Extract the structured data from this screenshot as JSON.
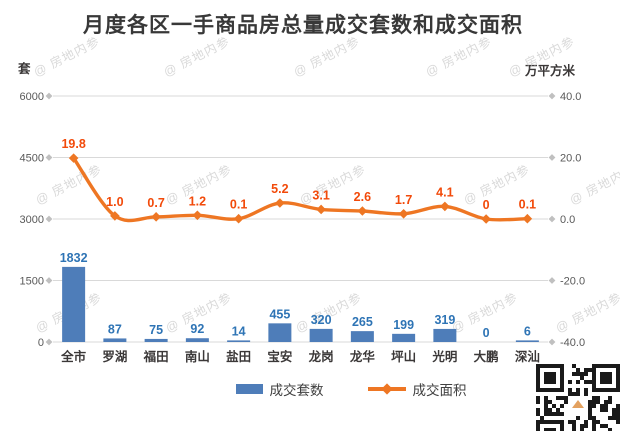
{
  "title": "月度各区一手商品房总量成交套数和成交面积",
  "axes": {
    "left_unit": "套",
    "right_unit": "万平方米"
  },
  "watermark": "@ 房地内参",
  "legend": [
    {
      "label": "成交套数",
      "type": "bar"
    },
    {
      "label": "成交面积",
      "type": "line"
    }
  ],
  "colors": {
    "bar": "#4E7DB9",
    "bar_label": "#2E74B5",
    "line": "#EE7623",
    "line_label": "#F24A0A",
    "grid": "#D9D9D9",
    "tick_marker": "#C0C0C0",
    "axis_text": "#595959",
    "title_text": "#383838",
    "category_text": "#3B3838",
    "legend_text": "#404040"
  },
  "chart_data": {
    "type": "bar+line",
    "title": "月度各区一手商品房总量成交套数和成交面积",
    "categories": [
      "全市",
      "罗湖",
      "福田",
      "南山",
      "盐田",
      "宝安",
      "龙岗",
      "龙华",
      "坪山",
      "光明",
      "大鹏",
      "深汕"
    ],
    "series": [
      {
        "name": "成交套数",
        "chart": "bar",
        "axis": "left",
        "values": [
          1832,
          87,
          75,
          92,
          14,
          455,
          320,
          265,
          199,
          319,
          0,
          6
        ]
      },
      {
        "name": "成交面积",
        "chart": "line",
        "axis": "right",
        "values": [
          19.8,
          1.0,
          0.7,
          1.2,
          0.1,
          5.2,
          3.1,
          2.6,
          1.7,
          4.1,
          0,
          0.1
        ]
      }
    ],
    "left_axis": {
      "unit": "套",
      "ticks": [
        6000,
        4500,
        3000,
        1500,
        0
      ],
      "range": [
        0,
        6000
      ]
    },
    "right_axis": {
      "unit": "万平方米",
      "ticks": [
        40.0,
        20.0,
        0.0,
        -20.0,
        -40.0
      ],
      "range": [
        -40,
        40
      ]
    },
    "grid": true,
    "legend_position": "bottom"
  }
}
